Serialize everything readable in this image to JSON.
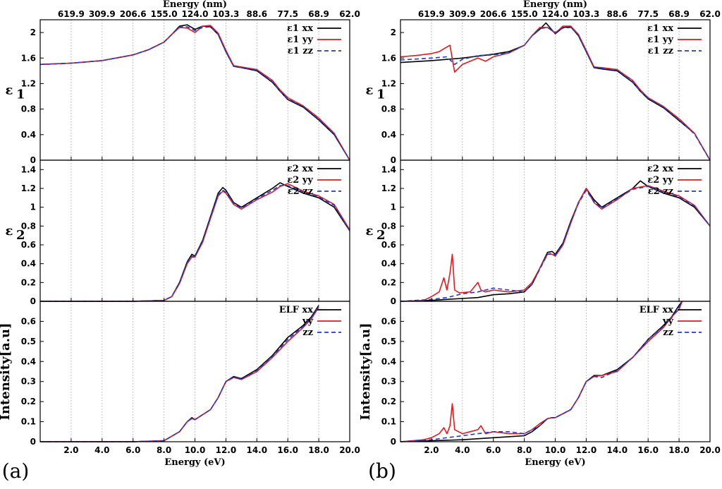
{
  "colors": {
    "xx": "#000000",
    "yy": "#e41a1c",
    "zz": "#1f3bd8",
    "grid": "#9a9a9a"
  },
  "figure": {
    "xlabel": "Energy (eV)",
    "top_axis_label": "Energy (nm)",
    "x_ticks": [
      "2.0",
      "4.0",
      "6.0",
      "8.0",
      "10.0",
      "12.0",
      "14.0",
      "16.0",
      "18.0",
      "20.0"
    ],
    "top_ticks": [
      "619.9",
      "309.9",
      "206.6",
      "155.0",
      "124.0",
      "103.3",
      "88.6",
      "77.5",
      "68.9",
      "62.0"
    ],
    "panel_labels": [
      "(a)",
      "(b)"
    ],
    "rows": [
      {
        "ylabel_main": "ε",
        "ylabel_sub": "1",
        "y_ticks": [
          "0",
          "0.4",
          "0.8",
          "1.2",
          "1.6",
          "2"
        ]
      },
      {
        "ylabel_main": "ε",
        "ylabel_sub": "2",
        "y_ticks": [
          "0",
          "0.2",
          "0.4",
          "0.6",
          "0.8",
          "1",
          "1.2",
          "1.4"
        ]
      },
      {
        "ylabel_main": "Intensity[a.u]",
        "ylabel_sub": "",
        "y_ticks": [
          "0",
          "0.1",
          "0.2",
          "0.3",
          "0.4",
          "0.5",
          "0.6"
        ]
      }
    ],
    "legends": [
      [
        "ε1 xx",
        "ε1 yy",
        "ε1 zz"
      ],
      [
        "ε2 xx",
        "ε2 yy",
        "ε2 zz"
      ],
      [
        "ELF xx",
        "yy",
        "zz"
      ]
    ]
  },
  "chart_data": [
    {
      "panel": "a",
      "type": "line",
      "title": "ε1",
      "ylim": [
        0,
        2.2
      ],
      "xlim": [
        0,
        20
      ],
      "series": [
        {
          "name": "xx",
          "x": [
            0,
            2,
            4,
            6,
            7,
            8,
            8.5,
            9,
            9.5,
            10,
            10.5,
            11,
            11.5,
            12,
            12.5,
            13,
            14,
            15,
            15.5,
            16,
            17,
            18,
            19,
            20
          ],
          "y": [
            1.5,
            1.52,
            1.56,
            1.65,
            1.73,
            1.85,
            1.97,
            2.1,
            2.12,
            2.05,
            2.1,
            2.09,
            1.97,
            1.7,
            1.47,
            1.45,
            1.4,
            1.22,
            1.08,
            0.95,
            0.83,
            0.63,
            0.4,
            0.0
          ]
        },
        {
          "name": "yy",
          "x": [
            0,
            2,
            4,
            6,
            7,
            8,
            8.5,
            9,
            9.5,
            10,
            10.5,
            11,
            11.5,
            12,
            12.5,
            13,
            14,
            15,
            15.5,
            16,
            17,
            18,
            19,
            20
          ],
          "y": [
            1.5,
            1.52,
            1.56,
            1.65,
            1.73,
            1.85,
            1.97,
            2.08,
            2.07,
            2.0,
            2.1,
            2.11,
            1.99,
            1.72,
            1.48,
            1.46,
            1.42,
            1.25,
            1.1,
            0.98,
            0.85,
            0.66,
            0.42,
            0.0
          ]
        },
        {
          "name": "zz",
          "x": [
            0,
            2,
            4,
            6,
            7,
            8,
            8.5,
            9,
            9.5,
            10,
            10.5,
            11,
            11.5,
            12,
            12.5,
            13,
            14,
            15,
            15.5,
            16,
            17,
            18,
            19,
            20
          ],
          "y": [
            1.5,
            1.52,
            1.56,
            1.65,
            1.73,
            1.85,
            1.97,
            2.09,
            2.09,
            2.03,
            2.08,
            2.09,
            1.97,
            1.7,
            1.47,
            1.45,
            1.41,
            1.23,
            1.08,
            0.96,
            0.84,
            0.64,
            0.41,
            0.0
          ]
        }
      ]
    },
    {
      "panel": "a",
      "type": "line",
      "title": "ε2",
      "ylim": [
        0,
        1.5
      ],
      "xlim": [
        0,
        20
      ],
      "series": [
        {
          "name": "xx",
          "x": [
            0,
            6,
            8,
            8.5,
            9,
            9.5,
            9.8,
            10,
            10.5,
            11,
            11.5,
            11.8,
            12,
            12.5,
            13,
            14,
            15,
            15.5,
            16,
            17,
            18,
            19,
            20
          ],
          "y": [
            0,
            0,
            0.01,
            0.05,
            0.2,
            0.42,
            0.5,
            0.48,
            0.65,
            0.9,
            1.15,
            1.21,
            1.18,
            1.05,
            1.0,
            1.1,
            1.2,
            1.26,
            1.22,
            1.15,
            1.1,
            1.0,
            0.75
          ]
        },
        {
          "name": "yy",
          "x": [
            0,
            6,
            8,
            8.5,
            9,
            9.5,
            9.8,
            10,
            10.5,
            11,
            11.5,
            11.8,
            12,
            12.5,
            13,
            14,
            15,
            15.5,
            16,
            17,
            18,
            19,
            20
          ],
          "y": [
            0,
            0,
            0.01,
            0.05,
            0.19,
            0.4,
            0.47,
            0.47,
            0.63,
            0.88,
            1.12,
            1.17,
            1.15,
            1.03,
            0.98,
            1.08,
            1.16,
            1.22,
            1.25,
            1.17,
            1.12,
            1.03,
            0.76
          ]
        },
        {
          "name": "zz",
          "x": [
            0,
            6,
            8,
            8.5,
            9,
            9.5,
            9.8,
            10,
            10.5,
            11,
            11.5,
            11.8,
            12,
            12.5,
            13,
            14,
            15,
            15.5,
            16,
            17,
            18,
            19,
            20
          ],
          "y": [
            0,
            0,
            0.01,
            0.05,
            0.19,
            0.41,
            0.48,
            0.47,
            0.64,
            0.89,
            1.13,
            1.18,
            1.16,
            1.04,
            0.99,
            1.09,
            1.18,
            1.23,
            1.23,
            1.16,
            1.11,
            1.02,
            0.75
          ]
        }
      ]
    },
    {
      "panel": "a",
      "type": "line",
      "title": "ELF",
      "ylim": [
        0,
        0.7
      ],
      "xlim": [
        0,
        20
      ],
      "series": [
        {
          "name": "xx",
          "x": [
            0,
            6,
            8,
            9,
            9.5,
            9.8,
            10,
            11,
            11.5,
            12,
            12.5,
            13,
            14,
            15,
            16,
            17,
            17.5,
            18
          ],
          "y": [
            0,
            0,
            0.005,
            0.05,
            0.1,
            0.12,
            0.11,
            0.16,
            0.22,
            0.3,
            0.325,
            0.315,
            0.36,
            0.43,
            0.52,
            0.58,
            0.62,
            0.68
          ]
        },
        {
          "name": "yy",
          "x": [
            0,
            6,
            8,
            9,
            9.5,
            9.8,
            10,
            11,
            11.5,
            12,
            12.5,
            13,
            14,
            15,
            16,
            17,
            17.5,
            18
          ],
          "y": [
            0,
            0,
            0.005,
            0.05,
            0.1,
            0.115,
            0.11,
            0.16,
            0.22,
            0.3,
            0.32,
            0.31,
            0.35,
            0.42,
            0.5,
            0.57,
            0.61,
            0.67
          ]
        },
        {
          "name": "zz",
          "x": [
            0,
            6,
            8,
            9,
            9.5,
            9.8,
            10,
            11,
            11.5,
            12,
            12.5,
            13,
            14,
            15,
            16,
            17,
            17.5,
            18
          ],
          "y": [
            0,
            0,
            0.005,
            0.05,
            0.1,
            0.118,
            0.11,
            0.16,
            0.22,
            0.3,
            0.322,
            0.312,
            0.355,
            0.425,
            0.51,
            0.575,
            0.615,
            0.675
          ]
        }
      ]
    },
    {
      "panel": "b",
      "type": "line",
      "title": "ε1",
      "ylim": [
        0,
        2.2
      ],
      "xlim": [
        0,
        20
      ],
      "series": [
        {
          "name": "xx",
          "x": [
            0,
            2,
            4,
            6,
            7,
            8,
            8.5,
            9,
            9.4,
            10,
            10.5,
            11,
            11.5,
            12,
            12.5,
            13,
            14,
            15,
            15.5,
            16,
            17,
            18,
            19,
            20
          ],
          "y": [
            1.53,
            1.56,
            1.6,
            1.66,
            1.7,
            1.8,
            1.95,
            2.05,
            2.15,
            1.98,
            2.08,
            2.09,
            1.95,
            1.7,
            1.45,
            1.43,
            1.4,
            1.22,
            1.08,
            0.96,
            0.82,
            0.62,
            0.42,
            0.0
          ]
        },
        {
          "name": "yy",
          "x": [
            0,
            1,
            2,
            2.5,
            2.9,
            3.2,
            3.5,
            4,
            5,
            5.5,
            6,
            7,
            8,
            8.5,
            9,
            9.5,
            10,
            10.5,
            11,
            11.5,
            12,
            12.5,
            13,
            14,
            15,
            15.5,
            16,
            17,
            18,
            19,
            20
          ],
          "y": [
            1.62,
            1.64,
            1.67,
            1.7,
            1.76,
            1.8,
            1.38,
            1.5,
            1.6,
            1.55,
            1.62,
            1.68,
            1.8,
            1.95,
            2.08,
            2.08,
            1.99,
            2.1,
            2.1,
            1.97,
            1.72,
            1.46,
            1.45,
            1.42,
            1.25,
            1.1,
            0.98,
            0.84,
            0.65,
            0.42,
            0.0
          ]
        },
        {
          "name": "zz",
          "x": [
            0,
            2,
            3,
            3.5,
            4,
            5,
            6,
            7,
            8,
            8.5,
            9,
            9.5,
            10,
            10.5,
            11,
            11.5,
            12,
            12.5,
            13,
            14,
            15,
            15.5,
            16,
            17,
            18,
            19,
            20
          ],
          "y": [
            1.57,
            1.6,
            1.62,
            1.5,
            1.58,
            1.64,
            1.65,
            1.68,
            1.8,
            1.95,
            2.06,
            2.08,
            2.0,
            2.07,
            2.08,
            1.96,
            1.7,
            1.46,
            1.44,
            1.41,
            1.23,
            1.08,
            0.97,
            0.83,
            0.63,
            0.41,
            0.0
          ]
        }
      ]
    },
    {
      "panel": "b",
      "type": "line",
      "title": "ε2",
      "ylim": [
        0,
        1.5
      ],
      "xlim": [
        0,
        20
      ],
      "series": [
        {
          "name": "xx",
          "x": [
            0,
            2,
            3,
            4,
            5,
            6,
            7,
            8,
            8.5,
            9,
            9.5,
            9.8,
            10,
            10.5,
            11,
            11.5,
            12,
            12.5,
            13,
            14,
            15,
            15.5,
            16,
            17,
            18,
            19,
            20
          ],
          "y": [
            0,
            0.01,
            0.02,
            0.03,
            0.04,
            0.07,
            0.08,
            0.1,
            0.18,
            0.35,
            0.52,
            0.53,
            0.5,
            0.62,
            0.85,
            1.05,
            1.2,
            1.08,
            1.0,
            1.1,
            1.2,
            1.28,
            1.22,
            1.15,
            1.1,
            1.0,
            0.8
          ]
        },
        {
          "name": "yy",
          "x": [
            0,
            1.5,
            2,
            2.5,
            2.8,
            3,
            3.2,
            3.35,
            3.5,
            3.8,
            4.5,
            5,
            5.2,
            5.5,
            6,
            7,
            8,
            8.5,
            9,
            9.5,
            9.8,
            10,
            10.5,
            11,
            11.5,
            12,
            12.5,
            13,
            14,
            15,
            16,
            17,
            18,
            19,
            20
          ],
          "y": [
            0,
            0.01,
            0.05,
            0.1,
            0.25,
            0.12,
            0.3,
            0.5,
            0.12,
            0.09,
            0.1,
            0.2,
            0.12,
            0.1,
            0.12,
            0.1,
            0.12,
            0.2,
            0.35,
            0.5,
            0.5,
            0.48,
            0.6,
            0.83,
            1.05,
            1.2,
            1.05,
            0.98,
            1.08,
            1.2,
            1.23,
            1.17,
            1.12,
            1.02,
            0.8
          ]
        },
        {
          "name": "zz",
          "x": [
            0,
            2,
            3,
            4,
            5,
            6,
            7,
            8,
            8.5,
            9,
            9.5,
            9.8,
            10,
            10.5,
            11,
            11.5,
            12,
            12.5,
            13,
            14,
            15,
            16,
            17,
            18,
            19,
            20
          ],
          "y": [
            0,
            0.02,
            0.04,
            0.08,
            0.1,
            0.14,
            0.12,
            0.1,
            0.18,
            0.34,
            0.5,
            0.51,
            0.49,
            0.61,
            0.84,
            1.04,
            1.18,
            1.06,
            0.99,
            1.09,
            1.19,
            1.22,
            1.16,
            1.11,
            1.01,
            0.8
          ]
        }
      ]
    },
    {
      "panel": "b",
      "type": "line",
      "title": "ELF",
      "ylim": [
        0,
        0.7
      ],
      "xlim": [
        0,
        20
      ],
      "series": [
        {
          "name": "xx",
          "x": [
            0,
            2,
            4,
            6,
            7,
            8,
            8.5,
            9,
            9.5,
            9.8,
            10,
            11,
            11.5,
            12,
            12.5,
            13,
            14,
            15,
            16,
            17,
            17.5,
            18,
            18.2
          ],
          "y": [
            0,
            0.005,
            0.01,
            0.02,
            0.025,
            0.03,
            0.05,
            0.08,
            0.115,
            0.12,
            0.12,
            0.16,
            0.22,
            0.3,
            0.33,
            0.33,
            0.36,
            0.42,
            0.51,
            0.58,
            0.62,
            0.68,
            0.7
          ]
        },
        {
          "name": "yy",
          "x": [
            0,
            1.5,
            2,
            2.5,
            2.8,
            3,
            3.2,
            3.35,
            3.5,
            4,
            4.5,
            5,
            5.2,
            5.5,
            6,
            7,
            8,
            8.5,
            9,
            9.5,
            9.8,
            10,
            11,
            11.5,
            12,
            12.5,
            13,
            14,
            15,
            16,
            17,
            17.5,
            18,
            18.2
          ],
          "y": [
            0,
            0.01,
            0.02,
            0.04,
            0.07,
            0.04,
            0.08,
            0.19,
            0.06,
            0.04,
            0.05,
            0.06,
            0.08,
            0.04,
            0.05,
            0.04,
            0.04,
            0.06,
            0.09,
            0.115,
            0.12,
            0.12,
            0.16,
            0.22,
            0.3,
            0.325,
            0.33,
            0.35,
            0.42,
            0.5,
            0.57,
            0.62,
            0.66,
            0.7
          ]
        },
        {
          "name": "zz",
          "x": [
            0,
            2,
            3,
            4,
            5,
            6,
            7,
            8,
            8.5,
            9,
            9.5,
            9.8,
            10,
            11,
            11.5,
            12,
            12.5,
            13,
            14,
            15,
            16,
            17,
            17.5,
            18,
            18.2
          ],
          "y": [
            0,
            0.01,
            0.02,
            0.03,
            0.04,
            0.05,
            0.05,
            0.04,
            0.06,
            0.08,
            0.115,
            0.12,
            0.12,
            0.16,
            0.22,
            0.3,
            0.325,
            0.32,
            0.355,
            0.42,
            0.51,
            0.575,
            0.615,
            0.67,
            0.7
          ]
        }
      ]
    }
  ]
}
